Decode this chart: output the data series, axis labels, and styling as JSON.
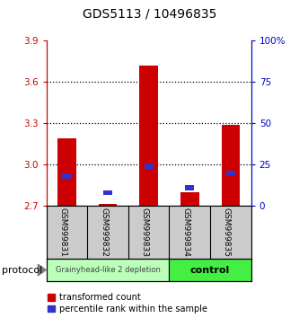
{
  "title": "GDS5113 / 10496835",
  "samples": [
    "GSM999831",
    "GSM999832",
    "GSM999833",
    "GSM999834",
    "GSM999835"
  ],
  "ylim_left": [
    2.7,
    3.9
  ],
  "ylim_right": [
    0,
    100
  ],
  "yticks_left": [
    2.7,
    3.0,
    3.3,
    3.6,
    3.9
  ],
  "yticks_right": [
    0,
    25,
    50,
    75,
    100
  ],
  "ytick_labels_right": [
    "0",
    "25",
    "50",
    "75",
    "100%"
  ],
  "bar_bottom": 2.7,
  "red_tops": [
    3.19,
    2.715,
    3.72,
    2.8,
    3.29
  ],
  "blue_values": [
    18,
    8,
    24,
    11,
    20
  ],
  "red_color": "#cc0000",
  "blue_color": "#3333cc",
  "bg_color": "#ffffff",
  "tick_label_color_left": "#cc0000",
  "tick_label_color_right": "#0000cc",
  "legend_red_label": "transformed count",
  "legend_blue_label": "percentile rank within the sample",
  "protocol_label": "protocol",
  "group1_label": "Grainyhead-like 2 depletion",
  "group2_label": "control",
  "group1_color": "#bbffbb",
  "group2_color": "#44ee44",
  "xlabel_area_color": "#cccccc",
  "dotted_lines": [
    3.0,
    3.3,
    3.6
  ]
}
